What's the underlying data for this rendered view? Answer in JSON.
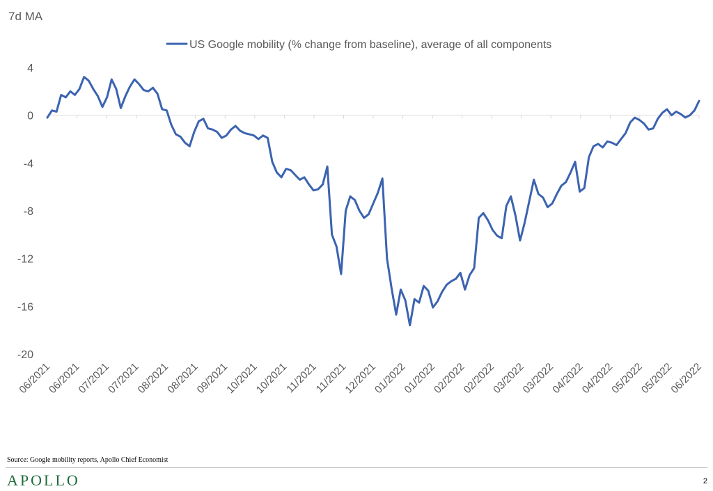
{
  "unit_label": "7d MA",
  "source": "Source: Google mobility reports, Apollo Chief Economist",
  "brand": "APOLLO",
  "page_number": "2",
  "colors": {
    "line": "#3b63b0",
    "grid": "#d9d9d9",
    "text": "#595959",
    "brand": "#1e6b3a"
  },
  "chart_data": {
    "type": "line",
    "title": "",
    "ylabel": "7d MA",
    "ylim": [
      -20,
      4
    ],
    "yticks": [
      4,
      0,
      -4,
      -8,
      -12,
      -16,
      -20
    ],
    "grid": false,
    "legend": "top",
    "x_tick_labels": [
      "06/2021",
      "06/2021",
      "07/2021",
      "07/2021",
      "08/2021",
      "08/2021",
      "09/2021",
      "10/2021",
      "10/2021",
      "11/2021",
      "11/2021",
      "12/2021",
      "01/2022",
      "01/2022",
      "02/2022",
      "02/2022",
      "03/2022",
      "03/2022",
      "04/2022",
      "04/2022",
      "05/2022",
      "05/2022",
      "06/2022"
    ],
    "series": [
      {
        "name": "US Google mobility (% change from baseline), average of all components",
        "values": [
          -0.2,
          0.4,
          0.3,
          1.7,
          1.5,
          2.0,
          1.7,
          2.2,
          3.2,
          2.9,
          2.2,
          1.6,
          0.7,
          1.5,
          3.0,
          2.2,
          0.6,
          1.6,
          2.4,
          3.0,
          2.6,
          2.1,
          2.0,
          2.3,
          1.8,
          0.5,
          0.4,
          -0.8,
          -1.6,
          -1.8,
          -2.3,
          -2.6,
          -1.4,
          -0.5,
          -0.3,
          -1.1,
          -1.2,
          -1.4,
          -1.9,
          -1.7,
          -1.2,
          -0.9,
          -1.3,
          -1.5,
          -1.6,
          -1.7,
          -2.0,
          -1.7,
          -1.9,
          -3.9,
          -4.8,
          -5.2,
          -4.5,
          -4.6,
          -5.0,
          -5.4,
          -5.2,
          -5.8,
          -6.3,
          -6.2,
          -5.8,
          -4.3,
          -10.0,
          -11.0,
          -13.3,
          -8.0,
          -6.8,
          -7.1,
          -8.0,
          -8.6,
          -8.3,
          -7.4,
          -6.5,
          -5.3,
          -12.0,
          -14.5,
          -16.7,
          -14.6,
          -15.5,
          -17.6,
          -15.4,
          -15.7,
          -14.3,
          -14.7,
          -16.1,
          -15.6,
          -14.8,
          -14.2,
          -13.9,
          -13.7,
          -13.2,
          -14.6,
          -13.4,
          -12.8,
          -8.6,
          -8.2,
          -8.8,
          -9.6,
          -10.1,
          -10.3,
          -7.6,
          -6.8,
          -8.4,
          -10.5,
          -9.0,
          -7.2,
          -5.4,
          -6.6,
          -6.9,
          -7.7,
          -7.4,
          -6.6,
          -5.9,
          -5.6,
          -4.8,
          -3.9,
          -6.4,
          -6.1,
          -3.5,
          -2.6,
          -2.4,
          -2.7,
          -2.2,
          -2.3,
          -2.5,
          -2.0,
          -1.5,
          -0.6,
          -0.2,
          -0.4,
          -0.7,
          -1.2,
          -1.1,
          -0.3,
          0.2,
          0.5,
          0.0,
          0.3,
          0.1,
          -0.2,
          0.0,
          0.4,
          1.2
        ]
      }
    ]
  }
}
